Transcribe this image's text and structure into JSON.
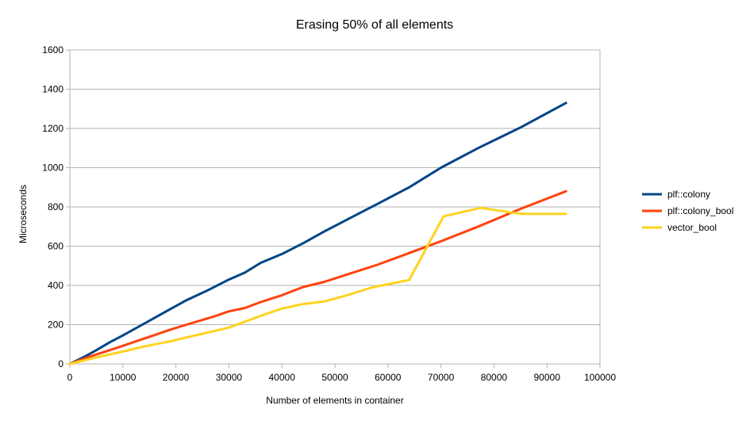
{
  "chart_data": {
    "type": "line",
    "title": "Erasing 50% of all elements",
    "xlabel": "Number of elements in container",
    "ylabel": "Microseconds",
    "xlim": [
      0,
      100000
    ],
    "ylim": [
      0,
      1600
    ],
    "x_ticks": [
      "0",
      "10000",
      "20000",
      "30000",
      "40000",
      "50000",
      "60000",
      "70000",
      "80000",
      "90000",
      "100000"
    ],
    "y_ticks": [
      "0",
      "200",
      "400",
      "600",
      "800",
      "1000",
      "1200",
      "1400",
      "1600"
    ],
    "grid": true,
    "legend_position": "right",
    "series": [
      {
        "name": "plf::colony",
        "color": "#004586",
        "points": [
          [
            0,
            0
          ],
          [
            1500,
            20
          ],
          [
            3000,
            40
          ],
          [
            5000,
            70
          ],
          [
            7500,
            110
          ],
          [
            10000,
            145
          ],
          [
            13000,
            190
          ],
          [
            16000,
            235
          ],
          [
            19000,
            280
          ],
          [
            22000,
            325
          ],
          [
            26000,
            375
          ],
          [
            30000,
            430
          ],
          [
            33000,
            465
          ],
          [
            36000,
            515
          ],
          [
            40000,
            560
          ],
          [
            44000,
            615
          ],
          [
            48000,
            675
          ],
          [
            53000,
            745
          ],
          [
            58000,
            815
          ],
          [
            64000,
            900
          ],
          [
            70000,
            1000
          ],
          [
            77000,
            1100
          ],
          [
            85000,
            1205
          ],
          [
            93600,
            1330
          ]
        ]
      },
      {
        "name": "plf::colony_bool",
        "color": "#ff420e",
        "points": [
          [
            0,
            0
          ],
          [
            1500,
            15
          ],
          [
            3000,
            30
          ],
          [
            5000,
            48
          ],
          [
            7500,
            70
          ],
          [
            10000,
            92
          ],
          [
            13000,
            120
          ],
          [
            16000,
            147
          ],
          [
            19000,
            175
          ],
          [
            22000,
            200
          ],
          [
            27000,
            240
          ],
          [
            30000,
            268
          ],
          [
            33000,
            285
          ],
          [
            36000,
            315
          ],
          [
            40000,
            350
          ],
          [
            44000,
            392
          ],
          [
            48000,
            418
          ],
          [
            53000,
            462
          ],
          [
            58000,
            505
          ],
          [
            64000,
            565
          ],
          [
            70000,
            625
          ],
          [
            77000,
            700
          ],
          [
            85000,
            790
          ],
          [
            93600,
            880
          ]
        ]
      },
      {
        "name": "vector_bool",
        "color": "#ffd320",
        "points": [
          [
            0,
            0
          ],
          [
            1500,
            10
          ],
          [
            3000,
            20
          ],
          [
            5000,
            33
          ],
          [
            7500,
            48
          ],
          [
            10000,
            63
          ],
          [
            13000,
            83
          ],
          [
            16000,
            100
          ],
          [
            19000,
            115
          ],
          [
            22000,
            135
          ],
          [
            26000,
            160
          ],
          [
            30000,
            185
          ],
          [
            33000,
            215
          ],
          [
            36000,
            245
          ],
          [
            40000,
            282
          ],
          [
            44000,
            305
          ],
          [
            48000,
            318
          ],
          [
            52000,
            348
          ],
          [
            57000,
            390
          ],
          [
            64000,
            428
          ],
          [
            70500,
            752
          ],
          [
            77500,
            795
          ],
          [
            85000,
            765
          ],
          [
            93600,
            765
          ]
        ]
      }
    ]
  }
}
